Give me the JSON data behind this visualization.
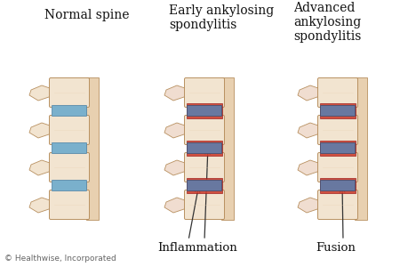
{
  "title1": "Normal spine",
  "title2": "Early ankylosing\nspondylitis",
  "title3": "Advanced\nankylosing\nspondylitis",
  "label1": "Inflammation",
  "label2": "Fusion",
  "copyright": "© Healthwise, Incorporated",
  "bg_color": "#ffffff",
  "bone_light": "#f2e4d0",
  "bone_mid": "#e8d0b0",
  "bone_dark": "#c8a878",
  "bone_edge": "#b89060",
  "disc_blue": "#7ab0cc",
  "disc_blue_dark": "#5a8aaa",
  "disc_gray": "#6878a0",
  "disc_gray_dark": "#485070",
  "inflam_red": "#cc4030",
  "inflam_light": "#e06050",
  "text_color": "#111111",
  "label_color": "#111111",
  "copyright_color": "#666666",
  "arrow_color": "#333333"
}
